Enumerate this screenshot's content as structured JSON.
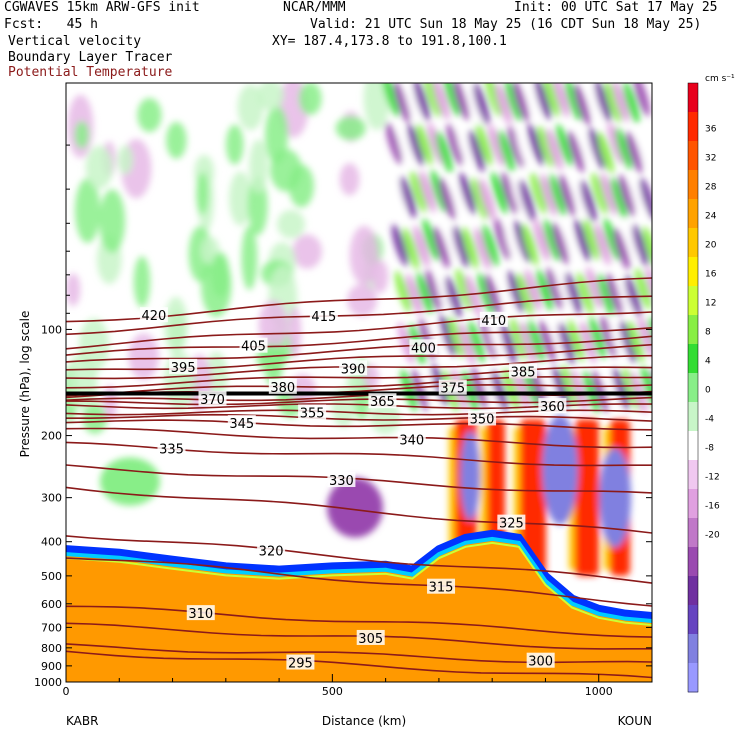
{
  "header": {
    "model": "CGWAVES 15km ARW-GFS init",
    "org": "NCAR/MMM",
    "init": "Init: 00 UTC Sat 17 May 25",
    "fcst": "Fcst:   45 h",
    "valid": "Valid: 21 UTC Sun 18 May 25 (16 CDT Sun 18 May 25)",
    "field1": "Vertical velocity",
    "xy": "XY= 187.4,173.8 to 191.8,100.1",
    "field2": "Boundary Layer Tracer",
    "field3": "Potential Temperature"
  },
  "colors": {
    "theta_contour": "#8b1a1a",
    "terrain": "#ff9900",
    "terrain_edge_cyan": "#00ccff",
    "terrain_edge_blue": "#0033ff"
  },
  "chart_data": {
    "type": "heatmap",
    "ylabel": "Pressure (hPa), log scale",
    "xlabel": "Distance (km)",
    "x_start_label": "KABR",
    "x_end_label": "KOUN",
    "x_ticks": [
      0,
      500,
      1000
    ],
    "xlim": [
      0,
      1100
    ],
    "y_ticks": [
      100,
      200,
      300,
      400,
      500,
      600,
      700,
      800,
      900,
      1000
    ],
    "ylim": [
      1000,
      20
    ],
    "y_scale": "log",
    "colorbar": {
      "unit": "cm s⁻¹",
      "ticks": [
        36,
        32,
        28,
        24,
        20,
        16,
        12,
        8,
        4,
        0,
        -4,
        -8,
        -12,
        -16,
        -20
      ],
      "colors": [
        "#e8001c",
        "#ff2a00",
        "#ff5500",
        "#ff7f00",
        "#ffa200",
        "#ffc800",
        "#ffee00",
        "#ccff33",
        "#88ee44",
        "#33dd33",
        "#88ee88",
        "#c8f5c8",
        "#ffffff",
        "#f0c8f0",
        "#e0a0e0",
        "#c078c8",
        "#9a4ab0",
        "#7030a0",
        "#6644c0",
        "#8080e0",
        "#9999ff"
      ]
    },
    "theta_contours": [
      {
        "value": 420,
        "p_left": 95,
        "p_right": 72
      },
      {
        "value": 415,
        "p_left": 102,
        "p_right": 80
      },
      {
        "value": 410,
        "p_left": 112,
        "p_right": 88
      },
      {
        "value": 405,
        "p_left": 118,
        "p_right": 98
      },
      {
        "value": 400,
        "p_left": 125,
        "p_right": 105
      },
      {
        "value": 395,
        "p_left": 132,
        "p_right": 112
      },
      {
        "value": 390,
        "p_left": 138,
        "p_right": 120
      },
      {
        "value": 385,
        "p_left": 145,
        "p_right": 128
      },
      {
        "value": 380,
        "p_left": 152,
        "p_right": 135
      },
      {
        "value": 375,
        "p_left": 155,
        "p_right": 142
      },
      {
        "value": 370,
        "p_left": 160,
        "p_right": 150
      },
      {
        "value": 365,
        "p_left": 162,
        "p_right": 158
      },
      {
        "value": 360,
        "p_left": 165,
        "p_right": 165
      },
      {
        "value": 355,
        "p_left": 172,
        "p_right": 172
      },
      {
        "value": 350,
        "p_left": 176,
        "p_right": 180
      },
      {
        "value": 345,
        "p_left": 182,
        "p_right": 190
      },
      {
        "value": 340,
        "p_left": 192,
        "p_right": 215
      },
      {
        "value": 335,
        "p_left": 212,
        "p_right": 245
      },
      {
        "value": 330,
        "p_left": 245,
        "p_right": 295
      },
      {
        "value": 325,
        "p_left": 280,
        "p_right": 380
      },
      {
        "value": 320,
        "p_left": 380,
        "p_right": 520
      },
      {
        "value": 315,
        "p_left": 440,
        "p_right": 600
      },
      {
        "value": 310,
        "p_left": 610,
        "p_right": 740
      },
      {
        "value": 305,
        "p_left": 690,
        "p_right": 810
      },
      {
        "value": 300,
        "p_left": 790,
        "p_right": 890
      },
      {
        "value": 295,
        "p_left": 820,
        "p_right": 980
      }
    ],
    "theta_labels": [
      "420",
      "415",
      "410",
      "405",
      "400",
      "395",
      "390",
      "385",
      "380",
      "375",
      "370",
      "365",
      "360",
      "355",
      "350",
      "345",
      "340",
      "335",
      "330",
      "325",
      "320",
      "315",
      "310",
      "305",
      "300",
      "295"
    ],
    "tropopause_p": 152
  }
}
